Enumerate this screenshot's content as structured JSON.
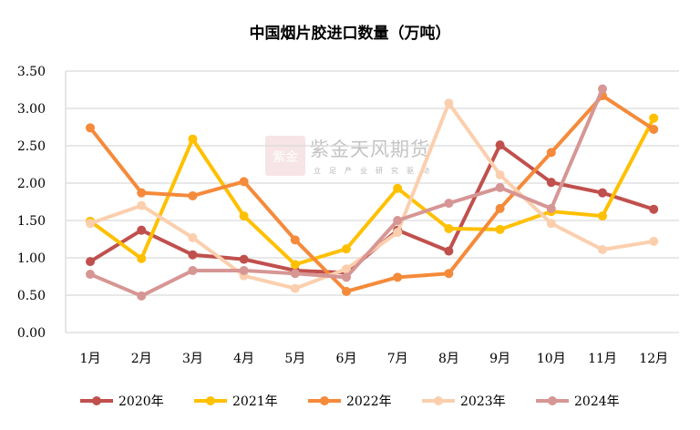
{
  "chart_data": {
    "type": "line",
    "title": "中国烟片胶进口数量（万吨）",
    "categories": [
      "1月",
      "2月",
      "3月",
      "4月",
      "5月",
      "6月",
      "7月",
      "8月",
      "9月",
      "10月",
      "11月",
      "12月"
    ],
    "ylim": [
      0,
      3.5
    ],
    "yticks": [
      "0.00",
      "0.50",
      "1.00",
      "1.50",
      "2.00",
      "2.50",
      "3.00",
      "3.50"
    ],
    "grid": true,
    "legend_position": "bottom",
    "series": [
      {
        "name": "2020年",
        "color": "#C0504D",
        "values": [
          0.95,
          1.37,
          1.04,
          0.98,
          0.83,
          0.8,
          1.37,
          1.09,
          2.51,
          2.01,
          1.87,
          1.65
        ]
      },
      {
        "name": "2021年",
        "color": "#FFC000",
        "values": [
          1.49,
          0.99,
          2.59,
          1.56,
          0.91,
          1.12,
          1.93,
          1.39,
          1.38,
          1.62,
          1.56,
          2.87
        ]
      },
      {
        "name": "2022年",
        "color": "#F58A3A",
        "values": [
          2.74,
          1.87,
          1.83,
          2.02,
          1.24,
          0.55,
          0.74,
          0.79,
          1.66,
          2.41,
          3.17,
          2.72
        ]
      },
      {
        "name": "2023年",
        "color": "#FBCFAE",
        "values": [
          1.46,
          1.7,
          1.27,
          0.76,
          0.59,
          0.85,
          1.34,
          3.07,
          2.11,
          1.46,
          1.11,
          1.22
        ]
      },
      {
        "name": "2024年",
        "color": "#D69694",
        "values": [
          0.78,
          0.49,
          0.83,
          0.83,
          0.79,
          0.74,
          1.5,
          1.73,
          1.94,
          1.66,
          3.26,
          null
        ]
      }
    ]
  },
  "watermark": {
    "logo_text": "紫金天风",
    "name": "紫金天风期货",
    "slogan": "立足产业研究驱动"
  }
}
